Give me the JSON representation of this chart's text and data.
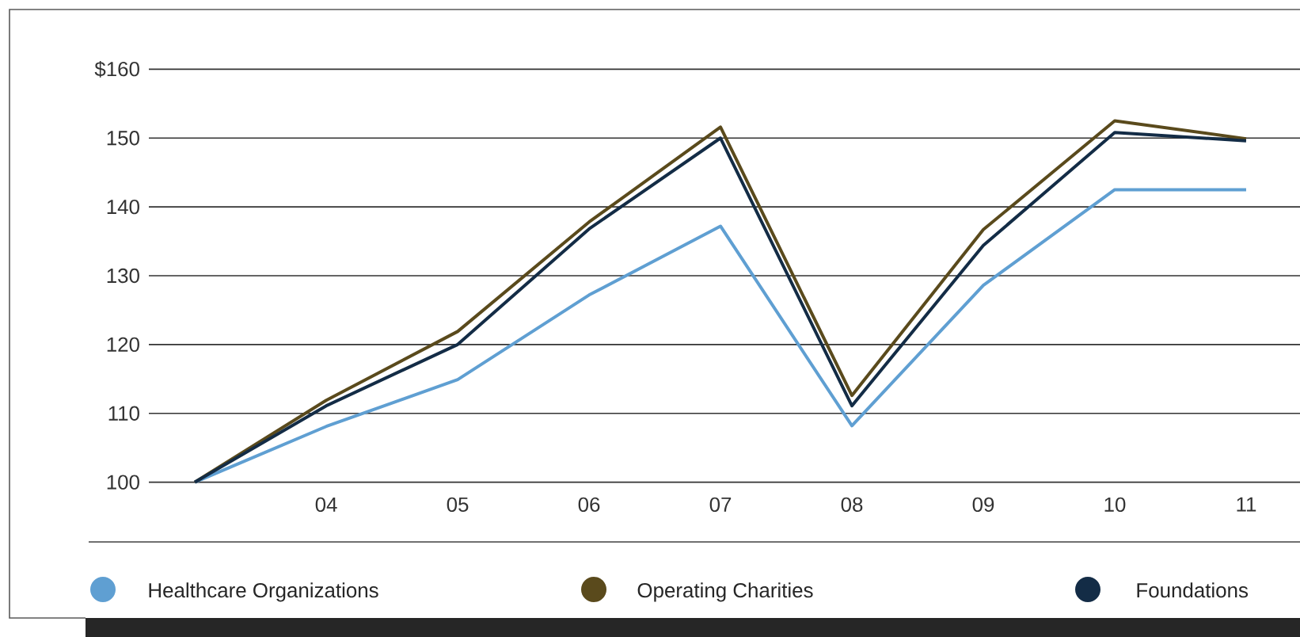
{
  "chart_data": {
    "type": "line",
    "categories": [
      null,
      "04",
      "05",
      "06",
      "07",
      "08",
      "09",
      "10",
      "11"
    ],
    "series": [
      {
        "name": "Healthcare Organizations",
        "color": "#5f9fd2",
        "values": [
          100,
          108.1,
          114.9,
          127.2,
          137.2,
          108.2,
          128.6,
          142.5,
          142.5
        ]
      },
      {
        "name": "Operating Charities",
        "color": "#5a4a1c",
        "values": [
          100,
          111.9,
          121.9,
          137.8,
          151.6,
          112.6,
          136.7,
          152.5,
          149.9
        ]
      },
      {
        "name": "Foundations",
        "color": "#132c46",
        "values": [
          100,
          111.1,
          120,
          136.8,
          150,
          111.1,
          134.4,
          150.8,
          149.6
        ]
      }
    ],
    "ylim": [
      100,
      160
    ],
    "yticks": [
      100,
      110,
      120,
      130,
      140,
      150,
      {
        "value": 160,
        "label": "$160"
      }
    ],
    "grid": "y",
    "legend": "bottom",
    "marker": "none",
    "line_style": "solid"
  }
}
